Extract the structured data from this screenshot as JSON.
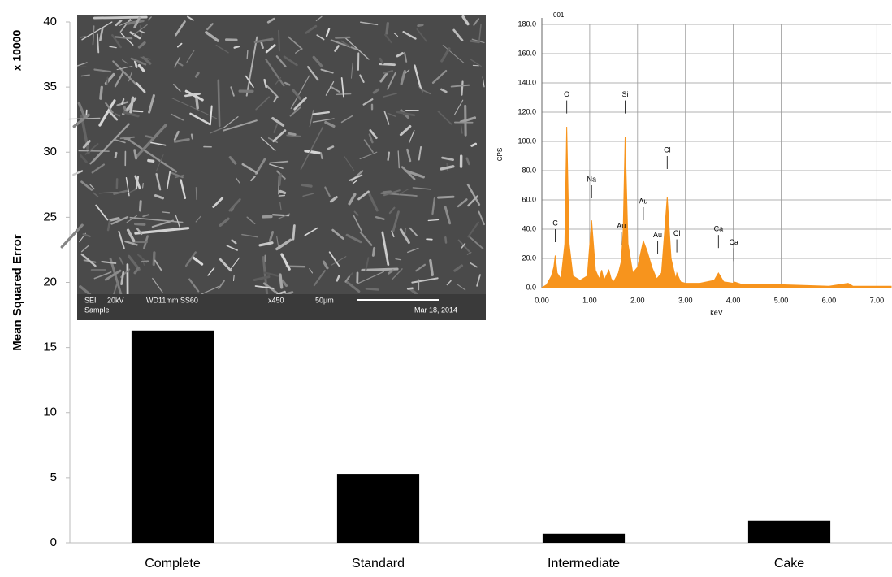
{
  "chart_data": [
    {
      "type": "bar",
      "y_label": "Mean Squared Error",
      "multiplier_label": "x 10000",
      "categories": [
        "Complete",
        "Standard",
        "Intermediate",
        "Cake"
      ],
      "values": [
        16.3,
        5.3,
        0.7,
        1.7
      ],
      "color": "#000000",
      "ylim": [
        0,
        40
      ],
      "yticks": [
        0,
        5,
        10,
        15,
        20,
        25,
        30,
        35,
        40
      ],
      "grid": false
    },
    {
      "type": "area",
      "title": "001",
      "x_label": "keV",
      "y_label": "CPS",
      "color": "#f7941d",
      "x": [
        0,
        0.1,
        0.2,
        0.25,
        0.28,
        0.32,
        0.4,
        0.48,
        0.52,
        0.57,
        0.65,
        0.8,
        0.95,
        1.04,
        1.12,
        1.2,
        1.25,
        1.3,
        1.4,
        1.45,
        1.5,
        1.6,
        1.66,
        1.7,
        1.74,
        1.8,
        1.9,
        2.0,
        2.12,
        2.2,
        2.3,
        2.4,
        2.5,
        2.62,
        2.7,
        2.8,
        2.82,
        2.9,
        3.0,
        3.3,
        3.6,
        3.69,
        3.8,
        4.0,
        4.01,
        4.2,
        5.0,
        6.0,
        6.4,
        6.5,
        7.3
      ],
      "values": [
        0,
        2,
        8,
        14,
        22,
        10,
        6,
        30,
        110,
        30,
        8,
        5,
        8,
        46,
        12,
        6,
        12,
        5,
        12,
        6,
        4,
        10,
        18,
        40,
        103,
        30,
        10,
        14,
        32,
        25,
        14,
        6,
        10,
        62,
        20,
        6,
        10,
        4,
        3,
        3,
        5,
        10,
        4,
        3,
        4,
        2,
        2,
        1,
        3,
        1,
        1
      ],
      "xlim": [
        0,
        7.3
      ],
      "ylim": [
        0,
        180
      ],
      "xticks": [
        {
          "value": 0,
          "label": "0.00"
        },
        {
          "value": 1,
          "label": "1.00"
        },
        {
          "value": 2,
          "label": "2.00"
        },
        {
          "value": 3,
          "label": "3.00"
        },
        {
          "value": 4,
          "label": "4.00"
        },
        {
          "value": 5,
          "label": "5.00"
        },
        {
          "value": 6,
          "label": "6.00"
        },
        {
          "value": 7,
          "label": "7.00"
        }
      ],
      "yticks": [
        {
          "value": 0,
          "label": "0.0"
        },
        {
          "value": 20,
          "label": "20.0"
        },
        {
          "value": 40,
          "label": "40.0"
        },
        {
          "value": 60,
          "label": "60.0"
        },
        {
          "value": 80,
          "label": "80.0"
        },
        {
          "value": 100,
          "label": "100.0"
        },
        {
          "value": 120,
          "label": "120.0"
        },
        {
          "value": 140,
          "label": "140.0"
        },
        {
          "value": 160,
          "label": "160.0"
        },
        {
          "value": 180,
          "label": "180.0"
        }
      ],
      "grid": true,
      "annotations": [
        {
          "text": "C",
          "x": 0.28,
          "y": 40
        },
        {
          "text": "O",
          "x": 0.52,
          "y": 128
        },
        {
          "text": "Na",
          "x": 1.04,
          "y": 70
        },
        {
          "text": "Au",
          "x": 1.66,
          "y": 38
        },
        {
          "text": "Si",
          "x": 1.74,
          "y": 128
        },
        {
          "text": "Au",
          "x": 2.12,
          "y": 55
        },
        {
          "text": "Au",
          "x": 2.42,
          "y": 32
        },
        {
          "text": "Cl",
          "x": 2.62,
          "y": 90
        },
        {
          "text": "Cl",
          "x": 2.82,
          "y": 33
        },
        {
          "text": "Ca",
          "x": 3.69,
          "y": 36
        },
        {
          "text": "Ca",
          "x": 4.01,
          "y": 27
        }
      ]
    }
  ],
  "sem_image": {
    "mode": "SEI",
    "voltage": "20kV",
    "settings": "WD11mm SS60",
    "magnification": "x450",
    "scale": "50μm",
    "sample": "Sample",
    "date": "Mar 18, 2014"
  }
}
